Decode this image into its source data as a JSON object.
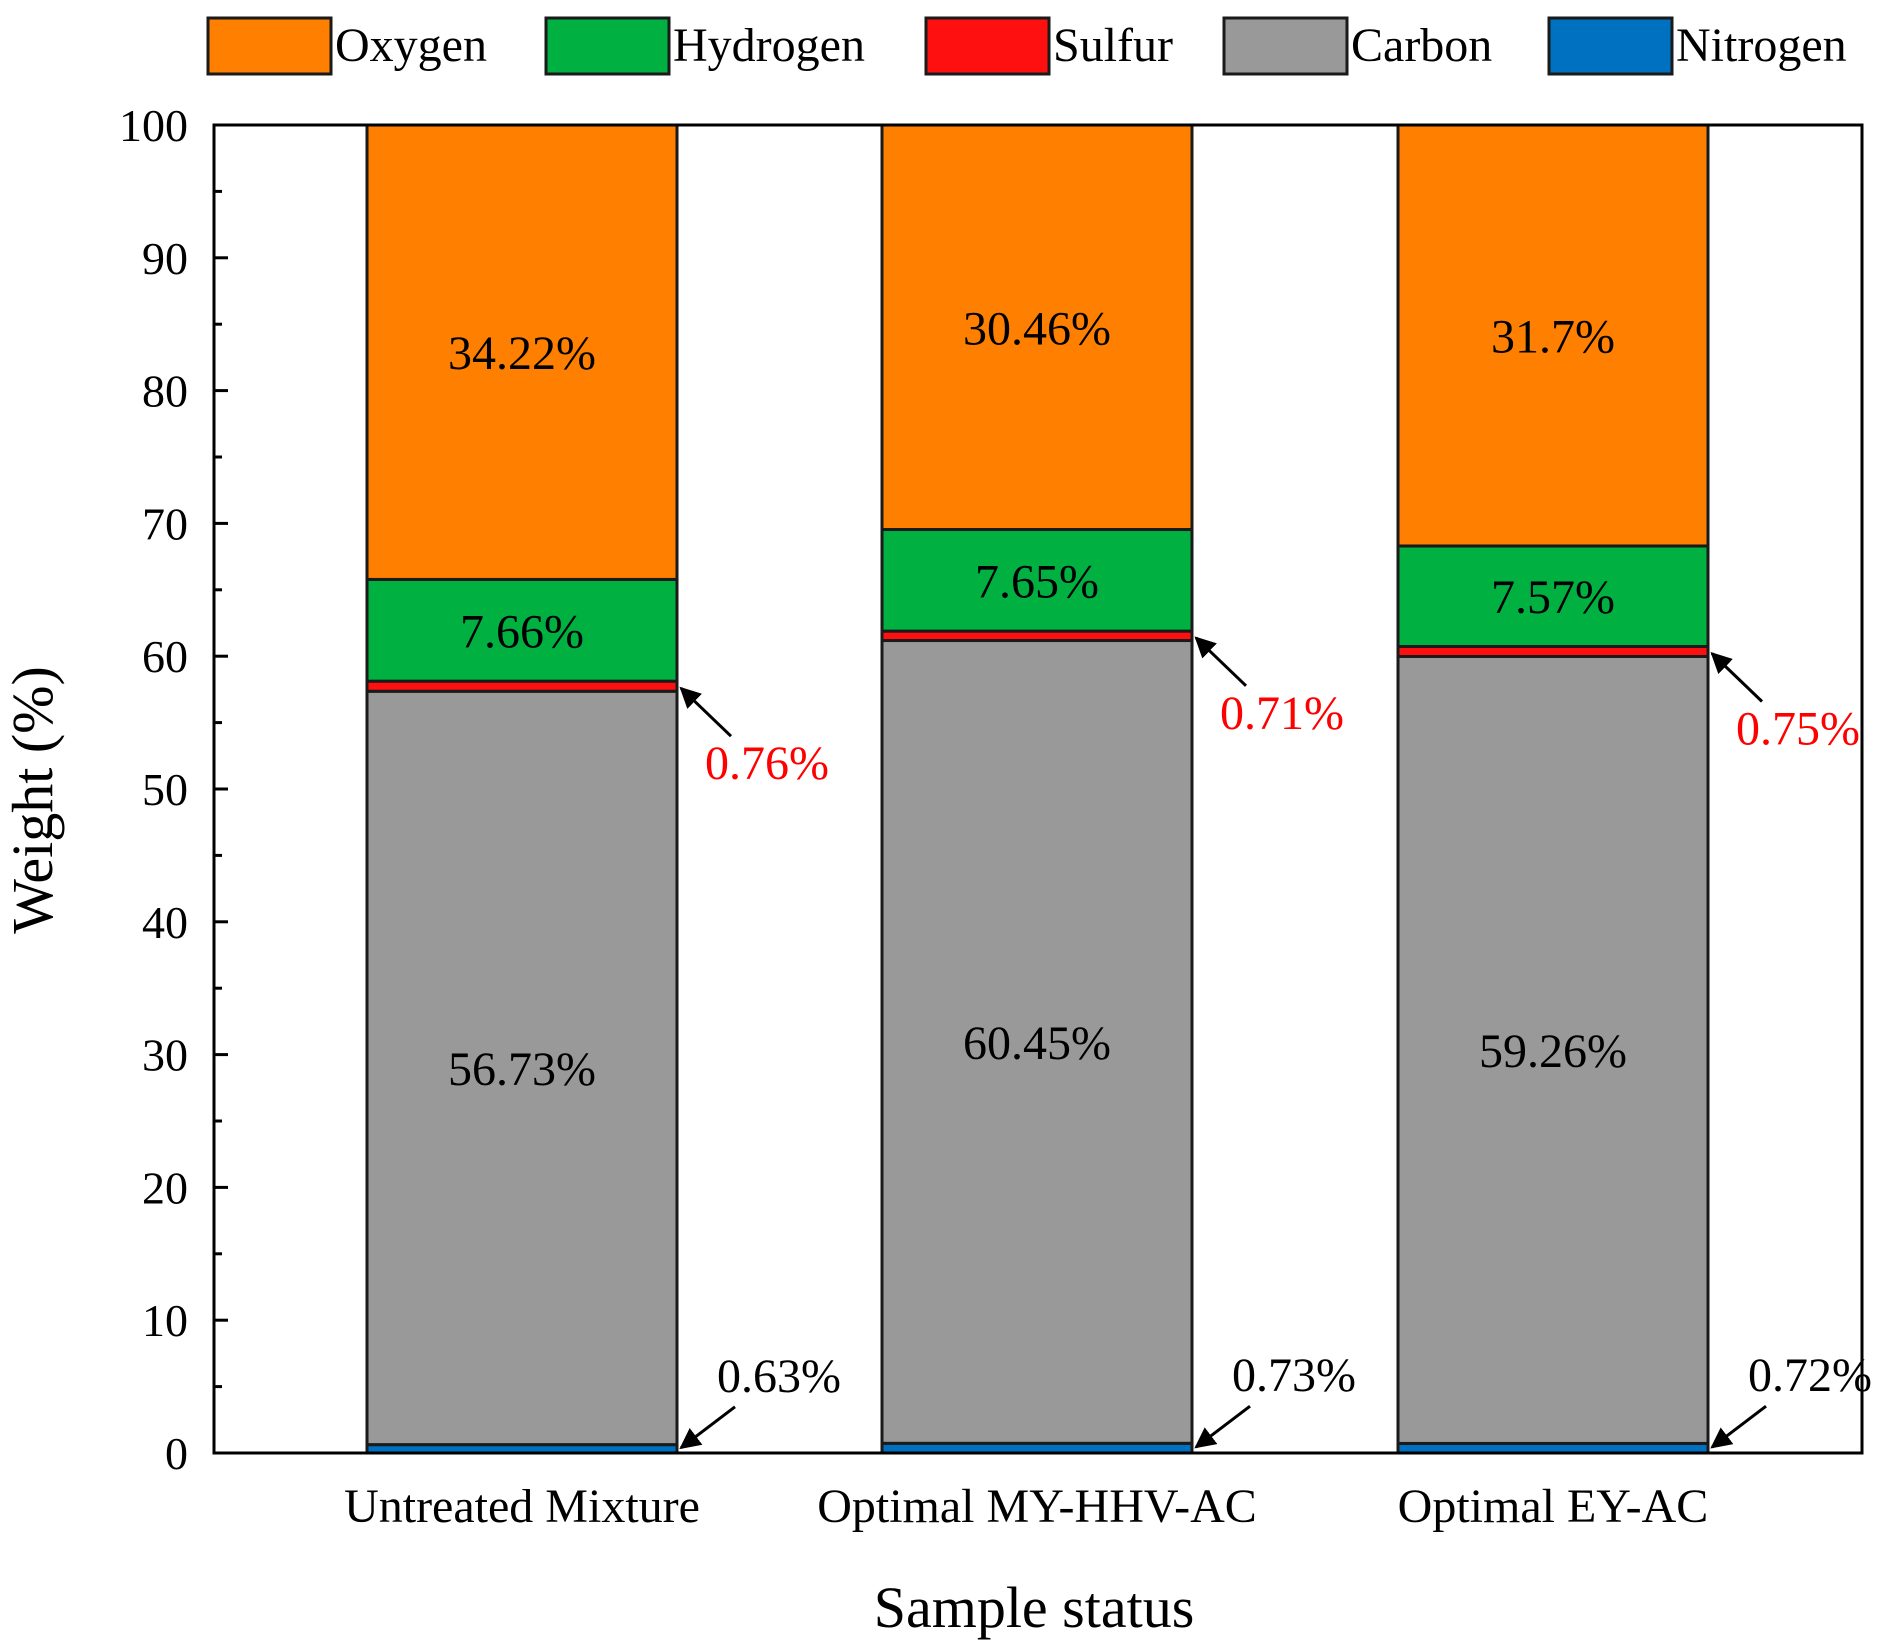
{
  "chart_data": {
    "type": "bar",
    "stacked": true,
    "xlabel": "Sample status",
    "ylabel": "Weight (%)",
    "ylim": [
      0,
      100
    ],
    "yticks": [
      0,
      10,
      20,
      30,
      40,
      50,
      60,
      70,
      80,
      90,
      100
    ],
    "categories": [
      "Untreated Mixture",
      "Optimal MY-HHV-AC",
      "Optimal EY-AC"
    ],
    "series": [
      {
        "name": "Nitrogen",
        "color": "#0070c0",
        "values": [
          0.63,
          0.73,
          0.72
        ],
        "labels": [
          "0.63%",
          "0.73%",
          "0.72%"
        ],
        "label_style": "callout-black"
      },
      {
        "name": "Carbon",
        "color": "#999999",
        "values": [
          56.73,
          60.45,
          59.26
        ],
        "labels": [
          "56.73%",
          "60.45%",
          "59.26%"
        ],
        "label_style": "inside"
      },
      {
        "name": "Sulfur",
        "color": "#ff1010",
        "values": [
          0.76,
          0.71,
          0.75
        ],
        "labels": [
          "0.76%",
          "0.71%",
          "0.75%"
        ],
        "label_style": "callout-red"
      },
      {
        "name": "Hydrogen",
        "color": "#00b040",
        "values": [
          7.66,
          7.65,
          7.57
        ],
        "labels": [
          "7.66%",
          "7.65%",
          "7.57%"
        ],
        "label_style": "inside"
      },
      {
        "name": "Oxygen",
        "color": "#ff7f00",
        "values": [
          34.22,
          30.46,
          31.7
        ],
        "labels": [
          "34.22%",
          "30.46%",
          "31.7%"
        ],
        "label_style": "inside"
      }
    ],
    "legend": {
      "position": "top",
      "order": [
        "Oxygen",
        "Hydrogen",
        "Sulfur",
        "Carbon",
        "Nitrogen"
      ]
    }
  }
}
